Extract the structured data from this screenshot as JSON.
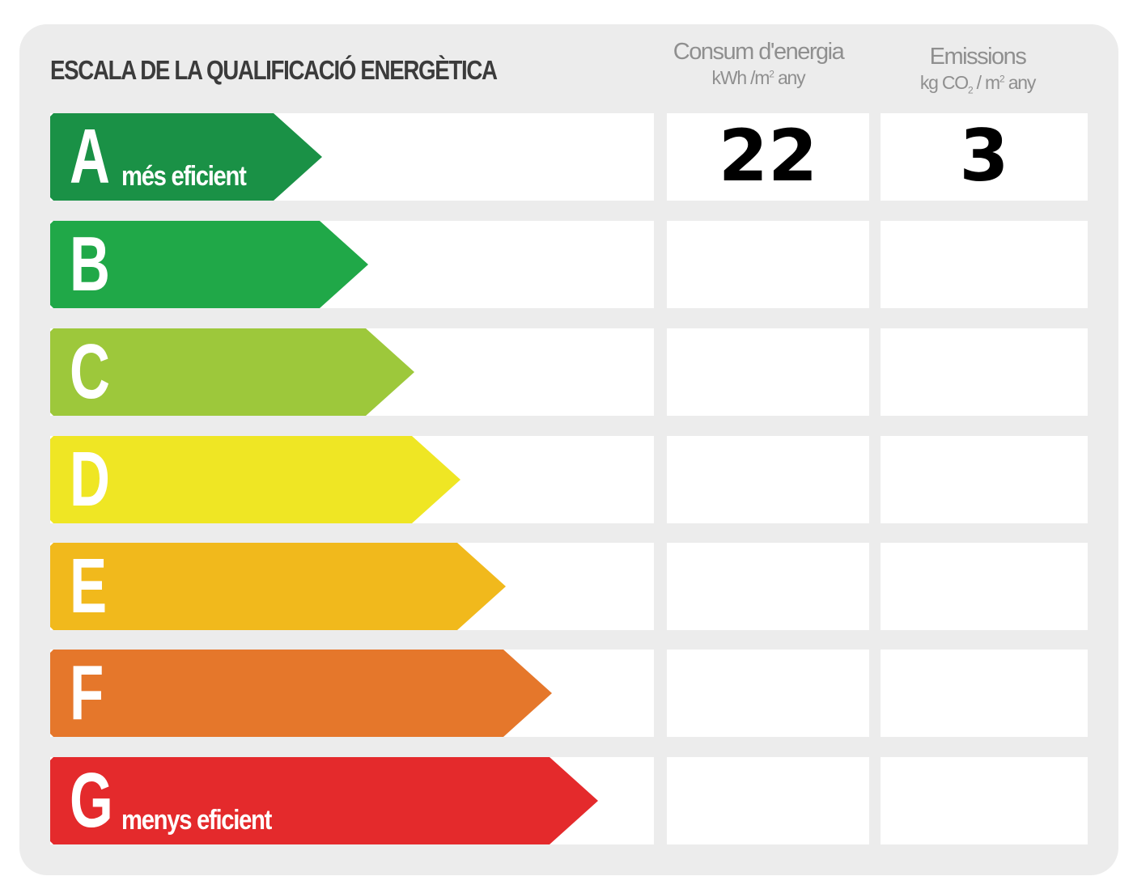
{
  "title": "ESCALA DE LA QUALIFICACIÓ ENERGÈTICA",
  "columns": {
    "energy": {
      "line1": "Consum d'energia",
      "unit_main": "kWh /m",
      "unit_sup": "2",
      "unit_tail": " any"
    },
    "emissions": {
      "line1": "Emissions",
      "unit_main": "kg CO",
      "unit_sub": "2",
      "unit_mid": " / m",
      "unit_sup": "2",
      "unit_tail": " any"
    }
  },
  "rows": [
    {
      "letter": "A",
      "sub": "més eficient",
      "color": "#1a9146",
      "energy": "22",
      "emissions": "3"
    },
    {
      "letter": "B",
      "sub": "",
      "color": "#20a848",
      "energy": "",
      "emissions": ""
    },
    {
      "letter": "C",
      "sub": "",
      "color": "#9dc83b",
      "energy": "",
      "emissions": ""
    },
    {
      "letter": "D",
      "sub": "",
      "color": "#efe624",
      "energy": "",
      "emissions": ""
    },
    {
      "letter": "E",
      "sub": "",
      "color": "#f1b91c",
      "energy": "",
      "emissions": ""
    },
    {
      "letter": "F",
      "sub": "",
      "color": "#e5772b",
      "energy": "",
      "emissions": ""
    },
    {
      "letter": "G",
      "sub": "menys eficient",
      "color": "#e42a2c",
      "energy": "",
      "emissions": ""
    }
  ]
}
